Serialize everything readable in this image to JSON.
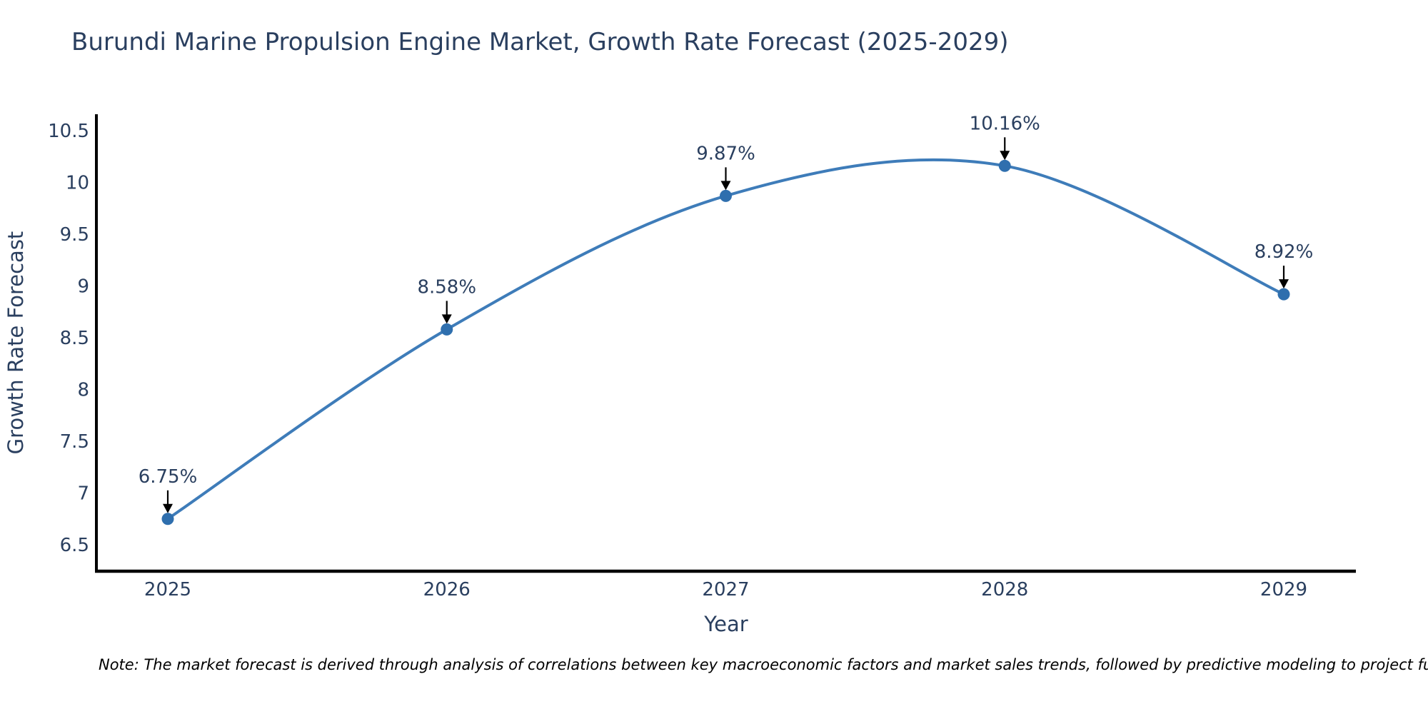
{
  "title": "Burundi Marine Propulsion Engine Market, Growth Rate Forecast (2025-2029)",
  "note": "Note: The market forecast is derived through analysis of correlations between key macroeconomic factors and market sales trends, followed by predictive modeling to project future sal",
  "colors": {
    "line": "#3e7cb9",
    "marker": "#2f6fae",
    "axis": "#000000",
    "text": "#2a3f5f",
    "annotation_arrow": "#000000"
  },
  "chart_data": {
    "type": "line",
    "line_shape": "spline",
    "title": "Burundi Marine Propulsion Engine Market, Growth Rate Forecast (2025-2029)",
    "x": [
      "2025",
      "2026",
      "2027",
      "2028",
      "2029"
    ],
    "series": [
      {
        "name": "Growth Rate Forecast",
        "values": [
          6.75,
          8.58,
          9.87,
          10.16,
          8.92
        ]
      }
    ],
    "point_labels": [
      "6.75%",
      "8.58%",
      "9.87%",
      "10.16%",
      "8.92%"
    ],
    "xlabel": "Year",
    "ylabel": "Growth Rate Forecast",
    "yticks": [
      6.5,
      7,
      7.5,
      8,
      8.5,
      9,
      9.5,
      10,
      10.5
    ],
    "ylim": [
      6.25,
      10.66
    ],
    "grid": false,
    "legend_position": "none",
    "markers": true,
    "annotations_have_arrows": true
  }
}
